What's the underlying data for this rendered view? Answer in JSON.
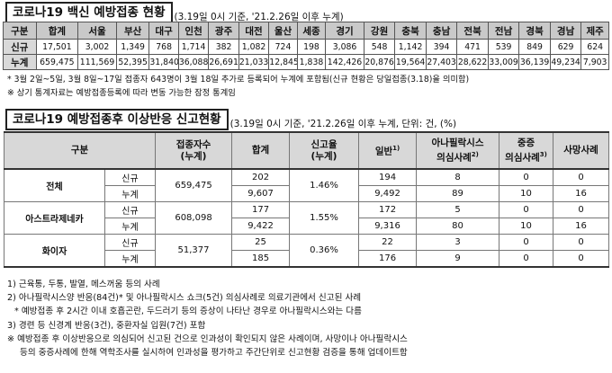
{
  "section1": {
    "title": "코로나19 백신 예방접종 현황",
    "note": "(3.19일 0시 기준, '21.2.26일 이후 누계)",
    "table": {
      "headers": [
        "구분",
        "합계",
        "서울",
        "부산",
        "대구",
        "인천",
        "광주",
        "대전",
        "울산",
        "세종",
        "경기",
        "강원",
        "충북",
        "충남",
        "전북",
        "전남",
        "경북",
        "경남",
        "제주"
      ],
      "rows": [
        [
          "신규",
          "17,501",
          "3,002",
          "1,349",
          "768",
          "1,714",
          "382",
          "1,082",
          "724",
          "198",
          "3,086",
          "548",
          "1,142",
          "394",
          "471",
          "539",
          "849",
          "629",
          "624"
        ],
        [
          "누계",
          "659,475",
          "111,569",
          "52,395",
          "31,840",
          "36,088",
          "26,691",
          "21,033",
          "12,845",
          "1,838",
          "142,426",
          "20,876",
          "19,564",
          "27,403",
          "28,622",
          "33,009",
          "36,139",
          "49,234",
          "7,903"
        ]
      ]
    },
    "footnotes": [
      "* 3월 2일~5일, 3월 8일~17일 접종자 643명이 3월 18일 추가로 등록되어 누계에 포함됨(신규 현황은 당일접종(3.18)을 의미함)",
      "※ 상기 통계자료는 예방접종등록에 따라 변동 가능한 잠정 통계임"
    ]
  },
  "section2": {
    "title": "코로나19 예방접종후 이상반응 신고현황",
    "note": "(3.19일 0시 기준, '21.2.26일 이후 누계, 단위: 건, (%)",
    "headers": {
      "category": "구분",
      "vaccinated_1": "접종자수",
      "vaccinated_2": "(누계)",
      "total": "합계",
      "rate_1": "신고율",
      "rate_2": "(누계)",
      "general": "일반",
      "general_sup": "1)",
      "anaphylaxis_1": "아나필락시스",
      "anaphylaxis_2": "의심사례",
      "anaphylaxis_sup": "2)",
      "severe_1": "중증",
      "severe_2": "의심사례",
      "severe_sup": "3)",
      "death": "사망사례"
    },
    "groups": [
      {
        "name": "전체",
        "vaccinated": "659,475",
        "rate": "1.46%",
        "rows": [
          {
            "label": "신규",
            "total": "202",
            "general": "194",
            "anaphylaxis": "8",
            "severe": "0",
            "death": "0"
          },
          {
            "label": "누계",
            "total": "9,607",
            "general": "9,492",
            "anaphylaxis": "89",
            "severe": "10",
            "death": "16"
          }
        ]
      },
      {
        "name": "아스트라제네카",
        "vaccinated": "608,098",
        "rate": "1.55%",
        "rows": [
          {
            "label": "신규",
            "total": "177",
            "general": "172",
            "anaphylaxis": "5",
            "severe": "0",
            "death": "0"
          },
          {
            "label": "누계",
            "total": "9,422",
            "general": "9,316",
            "anaphylaxis": "80",
            "severe": "10",
            "death": "16"
          }
        ]
      },
      {
        "name": "화이자",
        "vaccinated": "51,377",
        "rate": "0.36%",
        "rows": [
          {
            "label": "신규",
            "total": "25",
            "general": "22",
            "anaphylaxis": "3",
            "severe": "0",
            "death": "0"
          },
          {
            "label": "누계",
            "total": "185",
            "general": "176",
            "anaphylaxis": "9",
            "severe": "0",
            "death": "0"
          }
        ]
      }
    ],
    "footnotes": [
      "1) 근육통, 두통, 발열, 메스꺼움 등의 사례",
      "2) 아나필락시스양 반응(84건)* 및 아나필락시스 쇼크(5건) 의심사례로 의료기관에서 신고된 사례",
      "* 예방접종 후 2시간 이내 호흡곤란, 두드러기 등의 증상이 나타난 경우로 아나필락시스와는 다름",
      "3) 경련 등 신경계 반응(3건), 중환자실 입원(7건) 포함",
      "※ 예방접종 후 이상반응으로 의심되어 신고된 건으로 인과성이 확인되지 않은 사례이며, 사망이나 아나필락시스",
      "등의 중증사례에 한해 역학조사를 실시하여 인과성을 평가하고 주간단위로 신고현황 검증을 통해 업데이트함"
    ]
  }
}
